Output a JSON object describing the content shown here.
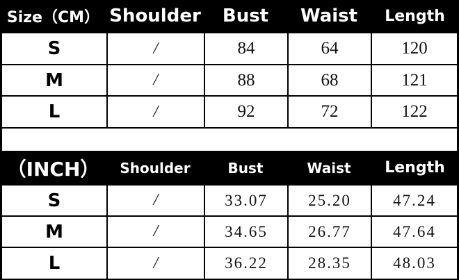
{
  "tables": [
    {
      "headers": [
        "Size（CM）",
        "Shoulder",
        "Bust",
        "Waist",
        "Length"
      ],
      "rows": [
        [
          "S",
          "/",
          "84",
          "64",
          "120"
        ],
        [
          "M",
          "/",
          "88",
          "68",
          "121"
        ],
        [
          "L",
          "/",
          "92",
          "72",
          "122"
        ]
      ]
    },
    {
      "headers": [
        "（INCH）",
        "Shoulder",
        "Bust",
        "Waist",
        "Length"
      ],
      "rows": [
        [
          "S",
          "/",
          "33.07",
          "25.20",
          "47.24"
        ],
        [
          "M",
          "/",
          "34.65",
          "26.77",
          "47.64"
        ],
        [
          "L",
          "/",
          "36.22",
          "28.35",
          "48.03"
        ]
      ]
    }
  ],
  "colors": {
    "header_bg": "#000000",
    "header_text": "#ffffff",
    "cell_bg": "#ffffff"
  }
}
